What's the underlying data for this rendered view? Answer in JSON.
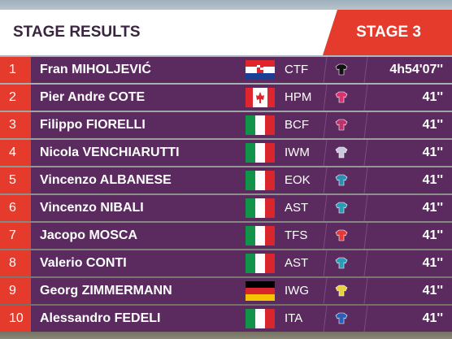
{
  "header": {
    "title": "STAGE RESULTS",
    "stage": "STAGE 3"
  },
  "rows": [
    {
      "rank": "1",
      "name": "Fran MIHOLJEVIĆ",
      "team": "CTF",
      "time": "4h54'07''"
    },
    {
      "rank": "2",
      "name": "Pier Andre COTE",
      "team": "HPM",
      "time": "41''"
    },
    {
      "rank": "3",
      "name": "Filippo FIORELLI",
      "team": "BCF",
      "time": "41''"
    },
    {
      "rank": "4",
      "name": "Nicola VENCHIARUTTI",
      "team": "IWM",
      "time": "41''"
    },
    {
      "rank": "5",
      "name": "Vincenzo ALBANESE",
      "team": "EOK",
      "time": "41''"
    },
    {
      "rank": "6",
      "name": "Vincenzo NIBALI",
      "team": "AST",
      "time": "41''"
    },
    {
      "rank": "7",
      "name": "Jacopo MOSCA",
      "team": "TFS",
      "time": "41''"
    },
    {
      "rank": "8",
      "name": "Valerio CONTI",
      "team": "AST",
      "time": "41''"
    },
    {
      "rank": "9",
      "name": "Georg ZIMMERMANN",
      "team": "IWG",
      "time": "41''"
    },
    {
      "rank": "10",
      "name": "Alessandro FEDELI",
      "team": "ITA",
      "time": "41''"
    }
  ]
}
